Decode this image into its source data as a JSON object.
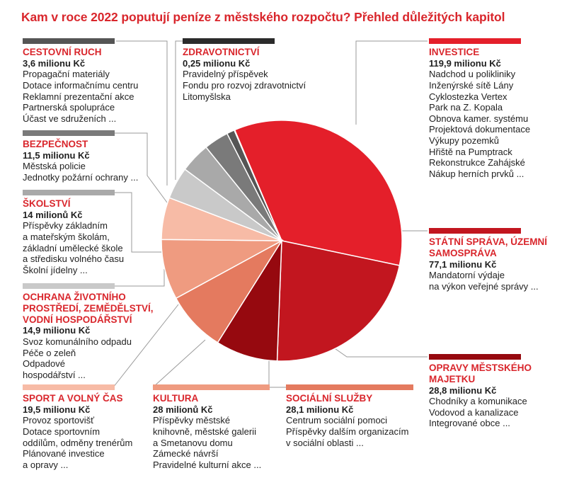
{
  "title": "Kam v roce 2022 poputují peníze z městského rozpočtu? Přehled důležitých kapitol",
  "chart_data": {
    "type": "pie",
    "categories": [
      {
        "name": "INVESTICE",
        "amount_label": "119,9 milionu Kč",
        "value": 119.9,
        "color": "#e41f2a",
        "items": [
          "Nadchod u polikliniky",
          "Inženýrské sítě Lány",
          "Cyklostezka Vertex",
          "Park na Z. Kopala",
          "Obnova kamer. systému",
          "Projektová dokumentace",
          "Výkupy pozemků",
          "Hřiště na Pumptrack",
          "Rekonstrukce Zahájské",
          "Nákup herních prvků ..."
        ]
      },
      {
        "name": "STÁTNÍ SPRÁVA, ÚZEMNÍ SAMOSPRÁVA",
        "amount_label": "77,1 milionu Kč",
        "value": 77.1,
        "color": "#c2161f",
        "items": [
          "Mandatorní výdaje",
          "na výkon veřejné správy ..."
        ]
      },
      {
        "name": "OPRAVY MĚSTSKÉHO MAJETKU",
        "amount_label": "28,8 milionu Kč",
        "value": 28.8,
        "color": "#96090f",
        "items": [
          "Chodníky a komunikace",
          "Vodovod a kanalizace",
          "Integrované obce ..."
        ]
      },
      {
        "name": "SOCIÁLNÍ SLUŽBY",
        "amount_label": "28,1 milionu Kč",
        "value": 28.1,
        "color": "#e47a5f",
        "items": [
          "Centrum sociální pomoci",
          "Příspěvky dalším organizacím",
          "v sociální oblasti ..."
        ]
      },
      {
        "name": "KULTURA",
        "amount_label": "28 milionů Kč",
        "value": 28.0,
        "color": "#ef9b80",
        "items": [
          "Příspěvky městské",
          "knihovně, městské galerii",
          "a Smetanovu domu",
          "Zámecké návrší",
          "Pravidelné kulturní akce ..."
        ]
      },
      {
        "name": "SPORT A VOLNÝ ČAS",
        "amount_label": "19,5 milionu Kč",
        "value": 19.5,
        "color": "#f7bba6",
        "items": [
          "Provoz sportovišť",
          "Dotace sportovním",
          "oddílům, odměny trenérům",
          "Plánované investice",
          "a opravy ..."
        ]
      },
      {
        "name": "OCHRANA ŽIVOTNÍHO PROSTŘEDÍ, ZEMĚDĚLSTVÍ, VODNÍ HOSPODÁŘSTVÍ",
        "amount_label": "14,9 milionu Kč",
        "value": 14.9,
        "color": "#c9c9c9",
        "items": [
          "Svoz komunálního odpadu",
          "Péče o zeleň",
          "Odpadové",
          "hospodářství ..."
        ]
      },
      {
        "name": "ŠKOLSTVÍ",
        "amount_label": "14 milionů Kč",
        "value": 14.0,
        "color": "#a9a9a9",
        "items": [
          "Příspěvky základním",
          "a mateřským školám,",
          "základní umělecké škole",
          "a středisku volného času",
          "Školní jídelny ..."
        ]
      },
      {
        "name": "BEZPEČNOST",
        "amount_label": "11,5 milionu Kč",
        "value": 11.5,
        "color": "#7a7a7a",
        "items": [
          "Městská policie",
          "Jednotky požární ochrany ..."
        ]
      },
      {
        "name": "CESTOVNÍ RUCH",
        "amount_label": "3,6 milionu Kč",
        "value": 3.6,
        "color": "#555555",
        "items": [
          "Propagační materiály",
          "Dotace informačnímu centru",
          "Reklamní prezentační akce",
          "Partnerská spolupráce",
          "Účast ve sdruženích ..."
        ]
      },
      {
        "name": "ZDRAVOTNICTVÍ",
        "amount_label": "0,25 milionu Kč",
        "value": 0.25,
        "color": "#2b2b2b",
        "items": [
          "Pravidelný příspěvek",
          "Fondu pro rozvoj zdravotnictví",
          "Litomyšlska"
        ]
      }
    ]
  }
}
